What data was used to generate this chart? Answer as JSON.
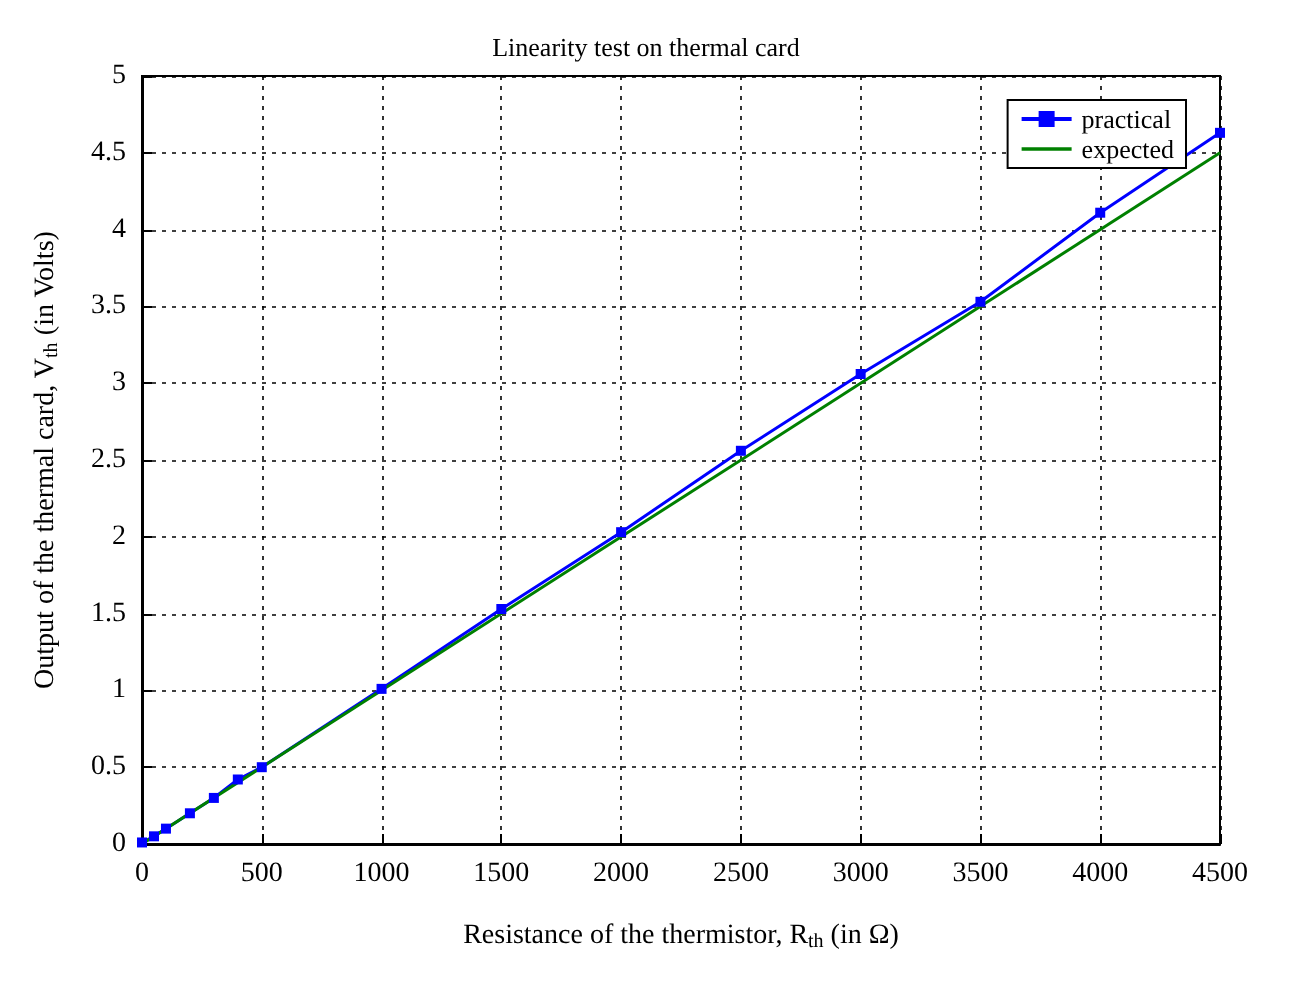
{
  "chart_data": {
    "type": "line",
    "title": "Linearity test on thermal card",
    "xlabel": "Resistance of the thermistor, R$_{th}$ (in Ω)",
    "ylabel": "Output of the thermal card, V$_{th}$ (in Volts)",
    "xlim": [
      0,
      4500
    ],
    "xticks": [
      0,
      500,
      1000,
      1500,
      2000,
      2500,
      3000,
      3500,
      4000,
      4500
    ],
    "ylim": [
      0,
      5
    ],
    "yticks": [
      0,
      0.5,
      1,
      1.5,
      2,
      2.5,
      3,
      3.5,
      4,
      4.5,
      5
    ],
    "grid": true,
    "legend": "top right",
    "line_style": "solid",
    "series": [
      {
        "name": "practical",
        "color": "#0000ff",
        "marker": "square",
        "x": [
          0,
          50,
          100,
          200,
          300,
          400,
          500,
          1000,
          1500,
          2000,
          2500,
          3000,
          3500,
          4000,
          4500
        ],
        "values": [
          0.01,
          0.05,
          0.1,
          0.2,
          0.3,
          0.42,
          0.5,
          1.01,
          1.53,
          2.03,
          2.56,
          3.06,
          3.53,
          4.11,
          4.63
        ]
      },
      {
        "name": "expected",
        "color": "#008000",
        "marker": "none",
        "x": [
          0,
          4500
        ],
        "values": [
          0,
          4.5
        ]
      }
    ]
  }
}
